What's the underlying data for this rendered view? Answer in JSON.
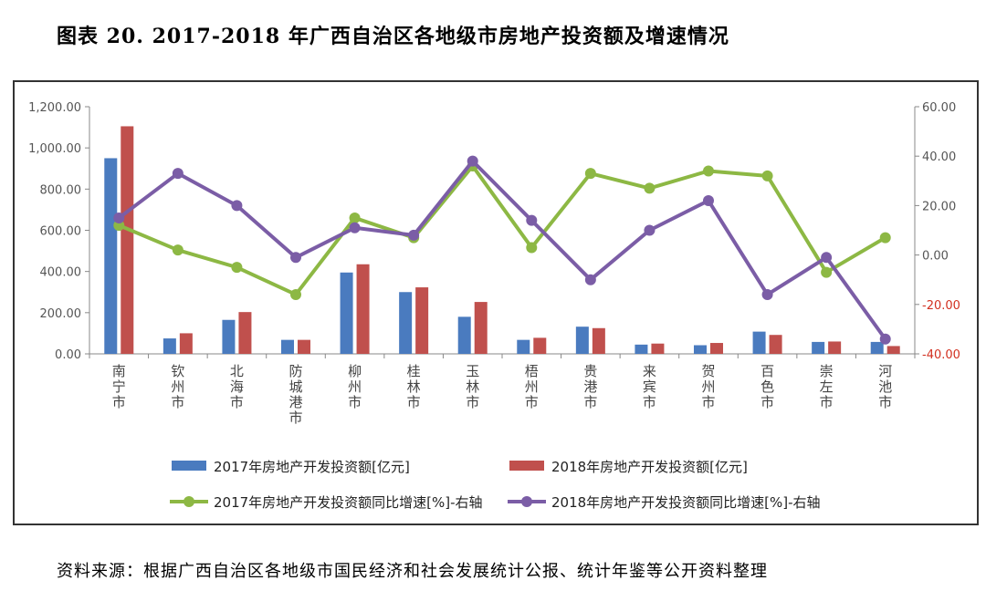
{
  "title": "图表 20.   2017-2018 年广西自治区各地级市房地产投资额及增速情况",
  "source": "资料来源：根据广西自治区各地级市国民经济和社会发展统计公报、统计年鉴等公开资料整理",
  "chart_data": {
    "type": "bar",
    "categories": [
      "南宁市",
      "钦州市",
      "北海市",
      "防城港市",
      "柳州市",
      "桂林市",
      "玉林市",
      "梧州市",
      "贵港市",
      "来宾市",
      "贺州市",
      "百色市",
      "崇左市",
      "河池市"
    ],
    "left_axis": {
      "ylim": [
        0,
        1200
      ],
      "ticks": [
        "0.00",
        "200.00",
        "400.00",
        "600.00",
        "800.00",
        "1,000.00",
        "1,200.00"
      ]
    },
    "right_axis": {
      "ylim": [
        -40,
        60
      ],
      "ticks": [
        "-40.00",
        "-20.00",
        "0.00",
        "20.00",
        "40.00",
        "60.00"
      ]
    },
    "series": [
      {
        "name": "2017年房地产开发投资额[亿元]",
        "kind": "bar",
        "axis": "left",
        "color": "#4a7bbf",
        "values": [
          950,
          75,
          165,
          68,
          395,
          300,
          180,
          68,
          132,
          45,
          42,
          108,
          58,
          58
        ]
      },
      {
        "name": "2018年房地产开发投资额[亿元]",
        "kind": "bar",
        "axis": "left",
        "color": "#c0504d",
        "values": [
          1105,
          100,
          203,
          68,
          435,
          323,
          252,
          78,
          125,
          50,
          53,
          92,
          60,
          38
        ]
      },
      {
        "name": "2017年房地产开发投资额同比增速[%]-右轴",
        "kind": "line",
        "axis": "right",
        "color": "#8db844",
        "values": [
          12,
          2,
          -5,
          -16,
          15,
          7,
          36,
          3,
          33,
          27,
          34,
          32,
          -7,
          7
        ]
      },
      {
        "name": "2018年房地产开发投资额同比增速[%]-右轴",
        "kind": "line",
        "axis": "right",
        "color": "#7b5da6",
        "values": [
          15,
          33,
          20,
          -1,
          11,
          8,
          38,
          14,
          -10,
          10,
          22,
          -16,
          -1,
          -34
        ]
      }
    ]
  }
}
